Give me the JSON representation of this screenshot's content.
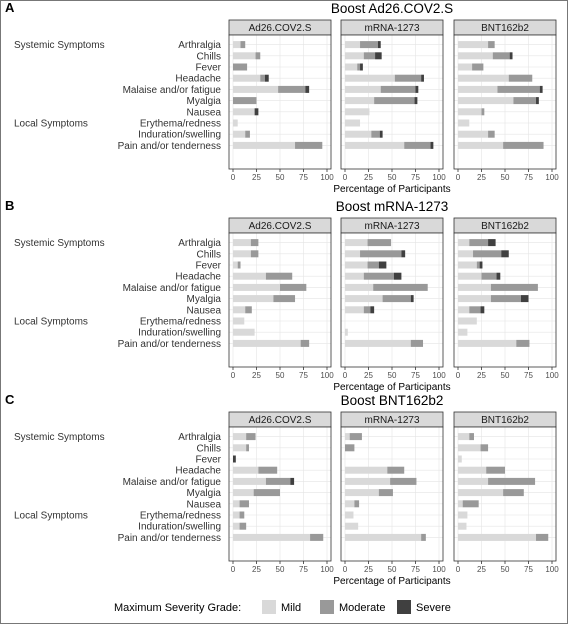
{
  "chart_data": {
    "type": "bar",
    "orientation": "horizontal",
    "stacked": true,
    "grid": true,
    "legend_placement": "bottom",
    "colors": {
      "Mild": "#d9d9d9",
      "Moderate": "#999999",
      "Severe": "#404040",
      "strip_bg": "#d9d9d9",
      "panel_bg": "#ffffff",
      "grid": "#e5e5e5"
    },
    "categories": [
      "Arthralgia",
      "Chills",
      "Fever",
      "Headache",
      "Malaise and/or fatigue",
      "Myalgia",
      "Nausea",
      "Erythema/redness",
      "Induration/swelling",
      "Pain and/or tenderness"
    ],
    "groups": [
      {
        "label": "Systemic Symptoms",
        "first_category": "Arthralgia"
      },
      {
        "label": "Local Symptoms",
        "first_category": "Erythema/redness"
      }
    ],
    "xlabel": "Percentage of Participants",
    "xlim": [
      0,
      100
    ],
    "x_ticks": [
      0,
      25,
      50,
      75,
      100
    ],
    "facets": [
      "Ad26.COV2.S",
      "mRNA-1273",
      "BNT162b2"
    ],
    "legend": {
      "title": "Maximum Severity Grade:",
      "entries": [
        "Mild",
        "Moderate",
        "Severe"
      ]
    },
    "panels": [
      {
        "letter": "A",
        "title": "Boost Ad26.COV2.S",
        "facets": [
          {
            "name": "Ad26.COV2.S",
            "series": [
              {
                "name": "Mild",
                "values": [
                  8,
                  24,
                  0,
                  29,
                  48,
                  0,
                  23,
                  5,
                  13,
                  66
                ]
              },
              {
                "name": "Moderate",
                "values": [
                  5,
                  5,
                  15,
                  5,
                  29,
                  25,
                  0,
                  0,
                  5,
                  29
                ]
              },
              {
                "name": "Severe",
                "values": [
                  0,
                  0,
                  0,
                  4,
                  4,
                  0,
                  4,
                  0,
                  0,
                  0
                ]
              }
            ]
          },
          {
            "name": "mRNA-1273",
            "series": [
              {
                "name": "Mild",
                "values": [
                  16,
                  20,
                  13,
                  53,
                  38,
                  31,
                  26,
                  16,
                  28,
                  63
                ]
              },
              {
                "name": "Moderate",
                "values": [
                  19,
                  12,
                  3,
                  28,
                  37,
                  43,
                  0,
                  0,
                  9,
                  28
                ]
              },
              {
                "name": "Severe",
                "values": [
                  3,
                  7,
                  3,
                  3,
                  3,
                  3,
                  0,
                  0,
                  3,
                  3
                ]
              }
            ]
          },
          {
            "name": "BNT162b2",
            "series": [
              {
                "name": "Mild",
                "values": [
                  32,
                  37,
                  15,
                  54,
                  42,
                  59,
                  25,
                  12,
                  32,
                  48
                ]
              },
              {
                "name": "Moderate",
                "values": [
                  7,
                  18,
                  12,
                  25,
                  45,
                  24,
                  3,
                  0,
                  7,
                  43
                ]
              },
              {
                "name": "Severe",
                "values": [
                  0,
                  3,
                  0,
                  0,
                  3,
                  3,
                  0,
                  0,
                  0,
                  0
                ]
              }
            ]
          }
        ]
      },
      {
        "letter": "B",
        "title": "Boost mRNA-1273",
        "facets": [
          {
            "name": "Ad26.COV2.S",
            "series": [
              {
                "name": "Mild",
                "values": [
                  19,
                  19,
                  5,
                  35,
                  50,
                  43,
                  13,
                  12,
                  23,
                  72
                ]
              },
              {
                "name": "Moderate",
                "values": [
                  8,
                  8,
                  3,
                  28,
                  28,
                  23,
                  7,
                  0,
                  0,
                  9
                ]
              },
              {
                "name": "Severe",
                "values": [
                  0,
                  0,
                  0,
                  0,
                  0,
                  0,
                  0,
                  0,
                  0,
                  0
                ]
              }
            ]
          },
          {
            "name": "mRNA-1273",
            "series": [
              {
                "name": "Mild",
                "values": [
                  24,
                  16,
                  24,
                  20,
                  30,
                  40,
                  20,
                  0,
                  3,
                  70
                ]
              },
              {
                "name": "Moderate",
                "values": [
                  25,
                  44,
                  12,
                  32,
                  58,
                  30,
                  7,
                  0,
                  0,
                  13
                ]
              },
              {
                "name": "Severe",
                "values": [
                  0,
                  4,
                  8,
                  8,
                  0,
                  3,
                  4,
                  0,
                  0,
                  0
                ]
              }
            ]
          },
          {
            "name": "BNT162b2",
            "series": [
              {
                "name": "Mild",
                "values": [
                  12,
                  16,
                  20,
                  25,
                  35,
                  35,
                  12,
                  20,
                  10,
                  62
                ]
              },
              {
                "name": "Moderate",
                "values": [
                  20,
                  30,
                  3,
                  16,
                  50,
                  32,
                  12,
                  0,
                  0,
                  14
                ]
              },
              {
                "name": "Severe",
                "values": [
                  8,
                  8,
                  3,
                  4,
                  0,
                  8,
                  4,
                  0,
                  0,
                  0
                ]
              }
            ]
          }
        ]
      },
      {
        "letter": "C",
        "title": "Boost BNT162b2",
        "facets": [
          {
            "name": "Ad26.COV2.S",
            "series": [
              {
                "name": "Mild",
                "values": [
                  14,
                  14,
                  0,
                  27,
                  35,
                  22,
                  7,
                  7,
                  7,
                  82
                ]
              },
              {
                "name": "Moderate",
                "values": [
                  10,
                  3,
                  0,
                  20,
                  26,
                  28,
                  10,
                  5,
                  7,
                  14
                ]
              },
              {
                "name": "Severe",
                "values": [
                  0,
                  0,
                  3,
                  0,
                  4,
                  0,
                  0,
                  0,
                  0,
                  0
                ]
              }
            ]
          },
          {
            "name": "mRNA-1273",
            "series": [
              {
                "name": "Mild",
                "values": [
                  5,
                  0,
                  0,
                  45,
                  48,
                  36,
                  10,
                  9,
                  14,
                  81
                ]
              },
              {
                "name": "Moderate",
                "values": [
                  13,
                  10,
                  0,
                  18,
                  28,
                  15,
                  5,
                  0,
                  0,
                  5
                ]
              },
              {
                "name": "Severe",
                "values": [
                  0,
                  0,
                  0,
                  0,
                  0,
                  0,
                  0,
                  0,
                  0,
                  0
                ]
              }
            ]
          },
          {
            "name": "BNT162b2",
            "series": [
              {
                "name": "Mild",
                "values": [
                  12,
                  24,
                  4,
                  30,
                  32,
                  48,
                  5,
                  10,
                  9,
                  83
                ]
              },
              {
                "name": "Moderate",
                "values": [
                  5,
                  8,
                  0,
                  20,
                  50,
                  22,
                  17,
                  0,
                  0,
                  13
                ]
              },
              {
                "name": "Severe",
                "values": [
                  0,
                  0,
                  0,
                  0,
                  0,
                  0,
                  0,
                  0,
                  0,
                  0
                ]
              }
            ]
          }
        ]
      }
    ]
  }
}
